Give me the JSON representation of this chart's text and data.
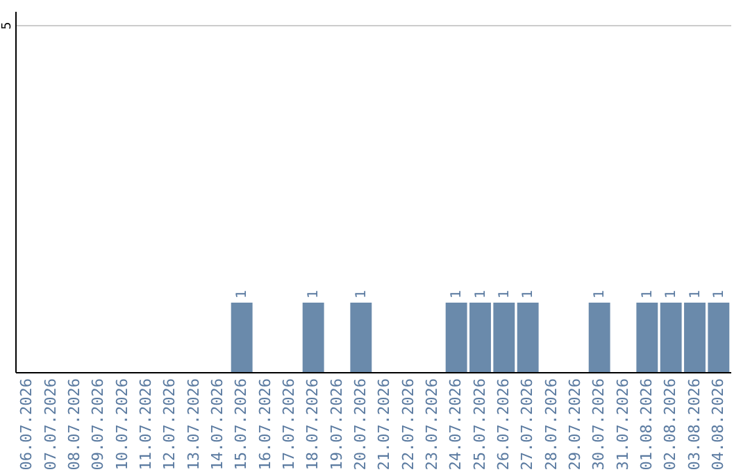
{
  "chart_data": {
    "type": "bar",
    "categories": [
      "06.07.2026",
      "07.07.2026",
      "08.07.2026",
      "09.07.2026",
      "10.07.2026",
      "11.07.2026",
      "12.07.2026",
      "13.07.2026",
      "14.07.2026",
      "15.07.2026",
      "16.07.2026",
      "17.07.2026",
      "18.07.2026",
      "19.07.2026",
      "20.07.2026",
      "21.07.2026",
      "22.07.2026",
      "23.07.2026",
      "24.07.2026",
      "25.07.2026",
      "26.07.2026",
      "27.07.2026",
      "28.07.2026",
      "29.07.2026",
      "30.07.2026",
      "31.07.2026",
      "01.08.2026",
      "02.08.2026",
      "03.08.2026",
      "04.08.2026"
    ],
    "values": [
      0,
      0,
      0,
      0,
      0,
      0,
      0,
      0,
      0,
      1,
      0,
      0,
      1,
      0,
      1,
      0,
      0,
      0,
      1,
      1,
      1,
      1,
      0,
      0,
      1,
      0,
      1,
      1,
      1,
      1
    ],
    "value_labels": [
      null,
      null,
      null,
      null,
      null,
      null,
      null,
      null,
      null,
      "1",
      null,
      null,
      "1",
      null,
      "1",
      null,
      null,
      null,
      "1",
      "1",
      "1",
      "1",
      null,
      null,
      "1",
      null,
      "1",
      "1",
      "1",
      "1"
    ],
    "color": "#6a8aab",
    "ylim": [
      0,
      5.2
    ],
    "yticks": [
      5
    ],
    "grid": "y"
  }
}
